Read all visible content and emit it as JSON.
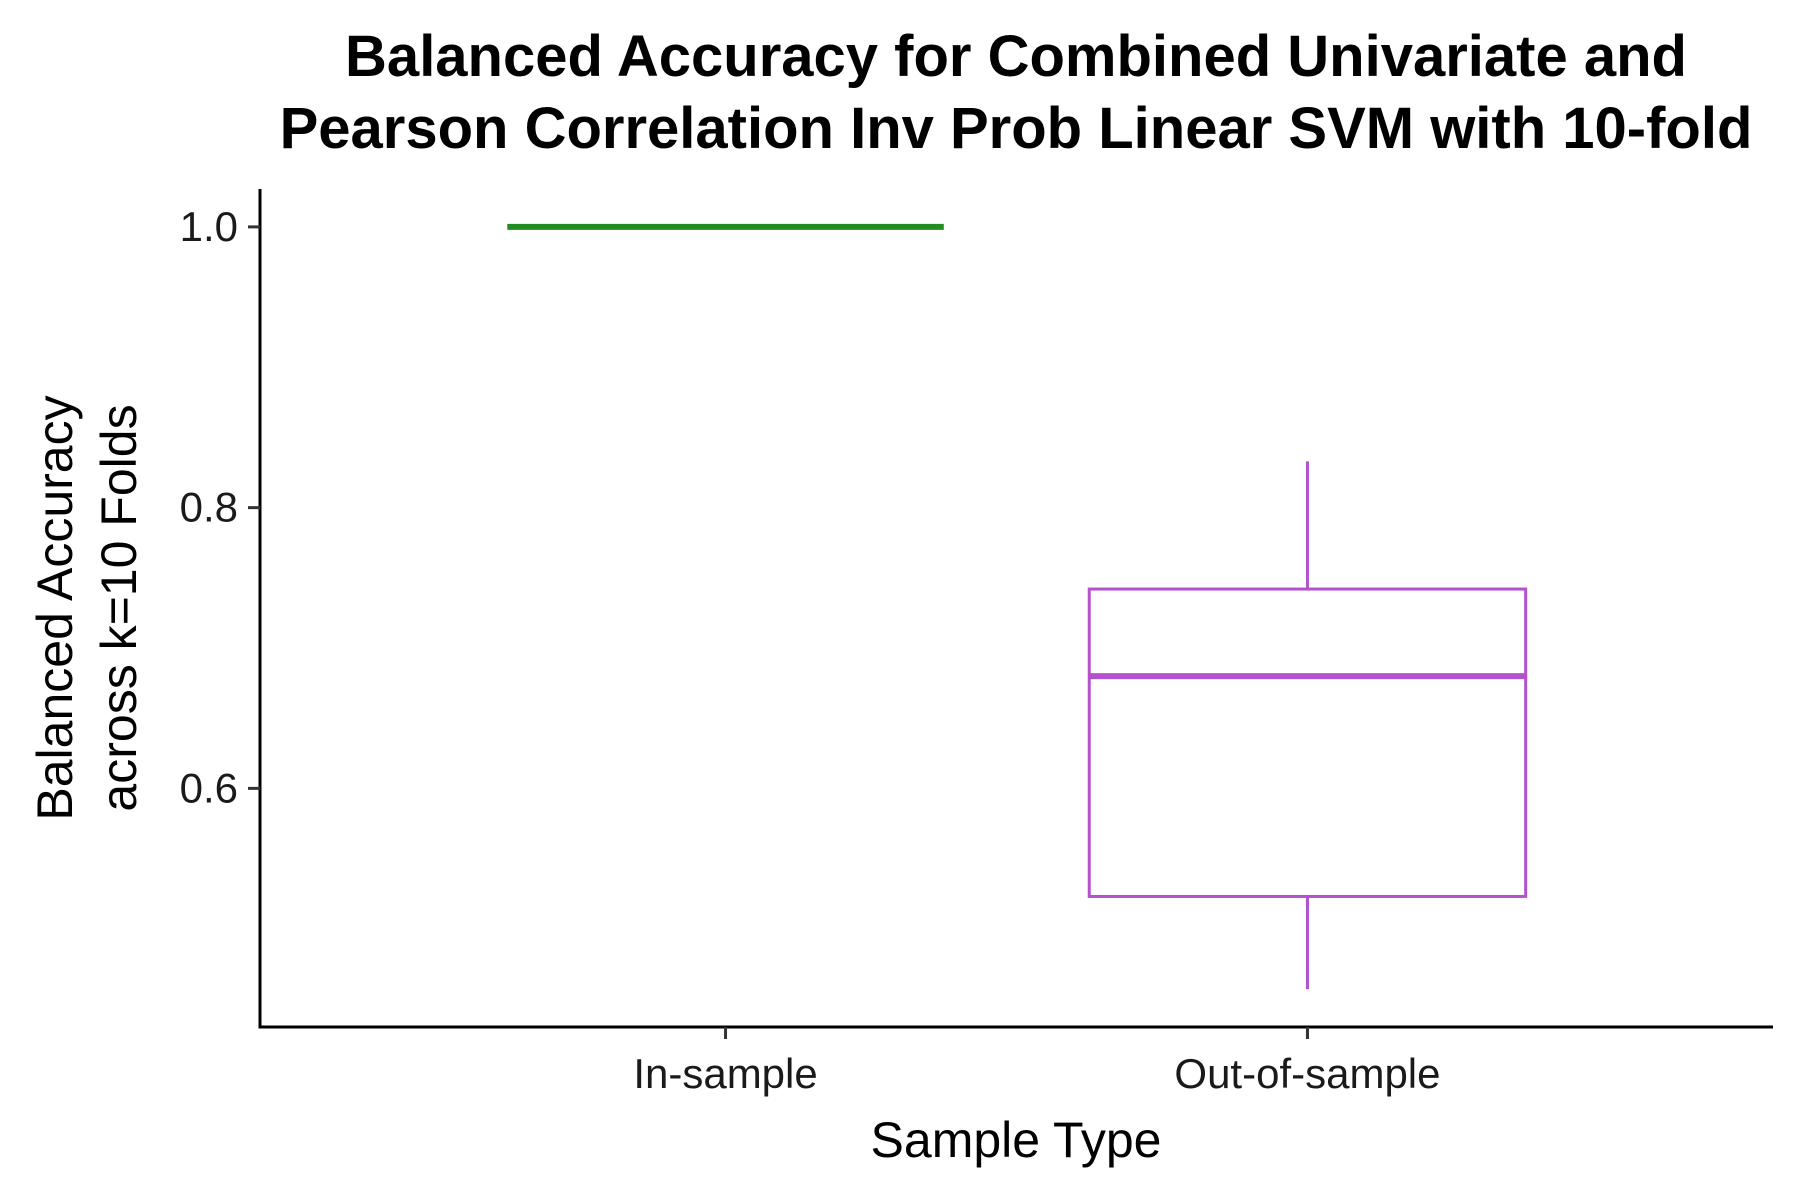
{
  "chart_data": {
    "type": "boxplot",
    "title_lines": [
      "Balanced Accuracy for Combined Univariate and",
      "Pearson Correlation Inv Prob Linear SVM with 10-fold"
    ],
    "xlabel": "Sample Type",
    "ylabel_lines": [
      "Balanced Accuracy",
      "across k=10 Folds"
    ],
    "categories": [
      "In-sample",
      "Out-of-sample"
    ],
    "ylim": [
      0.43,
      1.027
    ],
    "y_ticks": [
      {
        "value": 0.6,
        "label": "0.6"
      },
      {
        "value": 0.8,
        "label": "0.8"
      },
      {
        "value": 1.0,
        "label": "1.0"
      }
    ],
    "boxes": [
      {
        "category": "In-sample",
        "min": 1.0,
        "q1": 1.0,
        "median": 1.0,
        "q3": 1.0,
        "max": 1.0,
        "color": "#228B22"
      },
      {
        "category": "Out-of-sample",
        "min": 0.457,
        "q1": 0.523,
        "median": 0.68,
        "q3": 0.742,
        "max": 0.833,
        "color": "#B452CD"
      }
    ],
    "grid": false,
    "legend": "none"
  }
}
